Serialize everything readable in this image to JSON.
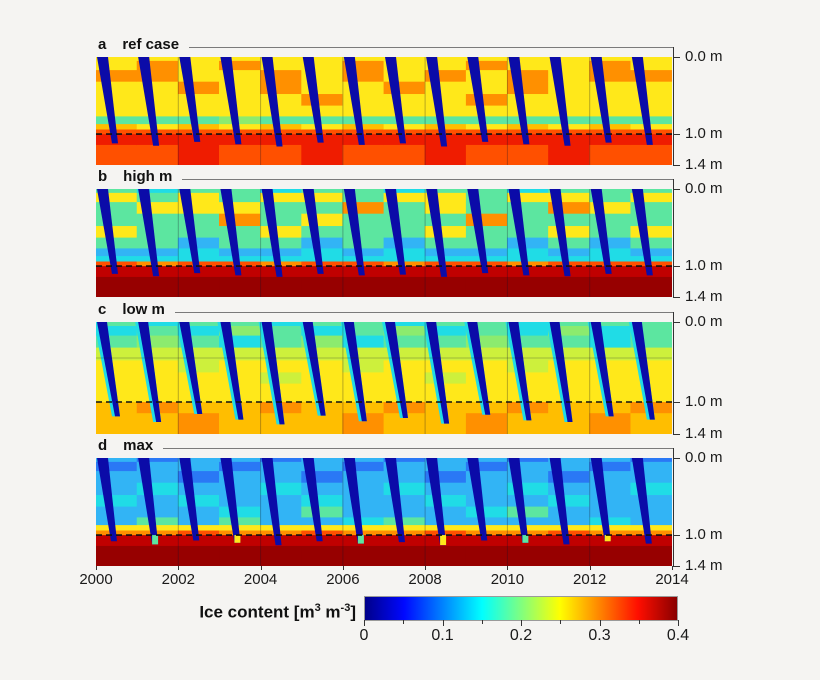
{
  "figure": {
    "kind": "four-panel depth-time heatmap of simulated soil ice content, 2000-2014"
  },
  "chart_data": {
    "type": "heatmap",
    "panels": [
      {
        "id": "a",
        "letter": "a",
        "label": "ref case",
        "description": "Seasonal thaw wedges (zero ice, dark blue) reach ~1.1 m; frozen soil mostly yellow-orange (~0.2-0.27); ice-rich red layer (~0.33-0.37) below 1.0 m dashed line.",
        "thaw_depth_m": [
          1.12,
          1.15,
          1.1,
          1.13,
          1.16,
          1.11,
          1.14,
          1.12,
          1.16,
          1.1,
          1.13,
          1.15,
          1.11,
          1.14
        ],
        "columns": [
          "YYOYYYgorRr",
          "YOOYYYgYrRr",
          "YYYOYYgorRR",
          "YOYYYYGYrRr",
          "YYOOYYgorRr",
          "YYYYOYgYrRR",
          "YOOYYYgorRr",
          "YYYOYYgYrRr",
          "YYOYYYgorRR",
          "YOYYOYgYrRr",
          "YYOOYYgorRr",
          "YYYYYYgYrRR",
          "YOOYYYgorRr",
          "YYOYYYgYrRr"
        ],
        "notches": "--------------",
        "h_gridline_m": null
      },
      {
        "id": "b",
        "letter": "b",
        "label": "high m",
        "description": "Frozen soil greener/cyan (~0.13-0.2) than ref; dark-red ice-rich layer (~0.38-0.4) below 1.0 m.",
        "thaw_depth_m": [
          1.1,
          1.13,
          1.09,
          1.12,
          1.14,
          1.1,
          1.12,
          1.11,
          1.14,
          1.09,
          1.12,
          1.13,
          1.1,
          1.12
        ],
        "columns": [
          "gYggYgcCrDd",
          "CgYgggcCODd",
          "gYYggcCCrDd",
          "ggYOggcCrDd",
          "CYggYgcCODd",
          "gYgYgcCCrDd",
          "ggOgggcCrDd",
          "CYgggcCCODd",
          "gYYgYgcCrDd",
          "gggOggcCrDd",
          "CYgggcCCODd",
          "gYOgYgcCrDd",
          "ggYggcCCrDd",
          "gYggYgcCrDd"
        ],
        "notches": "--------------",
        "h_gridline_m": null
      },
      {
        "id": "c",
        "letter": "c",
        "label": "low m",
        "description": "Green-cyan upper soil, yellow at depth; below 1.0 m only yellow-orange (~0.25-0.28), no ice-rich red layer; thaw wedges penetrate deepest.",
        "thaw_depth_m": [
          1.18,
          1.25,
          1.15,
          1.22,
          1.28,
          1.17,
          1.24,
          1.2,
          1.27,
          1.16,
          1.23,
          1.25,
          1.18,
          1.22
        ],
        "columns": [
          "gCgyYYYYYoo",
          "CgGyYYYYYOo",
          "gCgyyYYYYoO",
          "gGCyYYYYYoo",
          "CggyYyYYYOo",
          "gCGyYYYYYoo",
          "ggCyyYYYYoO",
          "CGgyYYYYYOo",
          "gCgyYyYYYoo",
          "ggGyYYYYYoO",
          "CCgyyYYYYOo",
          "gGgyYYYYYoo",
          "gCCyYYYYYoO",
          "gggyYYYYYOo"
        ],
        "notches": "--------------",
        "h_gridline_m": 0.45
      },
      {
        "id": "d",
        "letter": "d",
        "label": "max",
        "description": "Light-blue upper soil (~0.08-0.12), yellow-orange band just above 1.0 m, dark-red ice-rich layer (~0.4) below the dashed line.",
        "thaw_depth_m": [
          1.08,
          1.12,
          1.07,
          1.1,
          1.13,
          1.08,
          1.11,
          1.09,
          1.13,
          1.07,
          1.1,
          1.12,
          1.08,
          1.11
        ],
        "columns": [
          "cbccCccYODd",
          "bccCccgYODd",
          "ccbcCccYrDd",
          "cbcccCgYODd",
          "bccCcccYODd",
          "ccbcCgcYrDd",
          "cbccccCYODd",
          "bccCccgYODd",
          "ccbcCccYrDd",
          "cbcccCcYODd",
          "bccCcgcYODd",
          "ccbcCccYrDd",
          "cbccccCYODd",
          "bccCcccYODd"
        ],
        "notches": "-g-Y--g-Y-g-Y-",
        "h_gridline_m": null
      }
    ],
    "depth_breaks_m": [
      0,
      0.05,
      0.17,
      0.32,
      0.48,
      0.63,
      0.77,
      0.87,
      0.94,
      1.0,
      1.14,
      1.4
    ],
    "dashed_line_depth_m": 1.0,
    "x": {
      "range_years": [
        2000,
        2014
      ],
      "tick_labels": [
        "2000",
        "2002",
        "2004",
        "2006",
        "2008",
        "2010",
        "2012",
        "2014"
      ]
    },
    "y": {
      "range_m": [
        0,
        1.4
      ],
      "tick_depths_m": [
        0.0,
        1.0,
        1.4
      ],
      "tick_labels": [
        "0.0 m",
        "1.0 m",
        "1.4 m"
      ]
    },
    "colorbar": {
      "title_pre": "Ice content [m",
      "sup_a": "3",
      "title_mid": " m",
      "sup_b": "-3",
      "title_post": "]",
      "range": [
        0,
        0.4
      ],
      "tick_labels": [
        "0",
        "0.1",
        "0.2",
        "0.3",
        "0.4"
      ],
      "minor_tick_step": 0.05,
      "colormap": "jet"
    },
    "palette": {
      "B": "#0b0ba8",
      "b": "#2a78f5",
      "c": "#32b4f5",
      "C": "#20dce6",
      "g": "#5ce6a0",
      "G": "#8ceb6e",
      "y": "#cdf03c",
      "Y": "#ffe81a",
      "o": "#ffbe00",
      "O": "#ff9000",
      "r": "#ff5000",
      "R": "#ef1c00",
      "D": "#c00000",
      "d": "#970000"
    }
  }
}
